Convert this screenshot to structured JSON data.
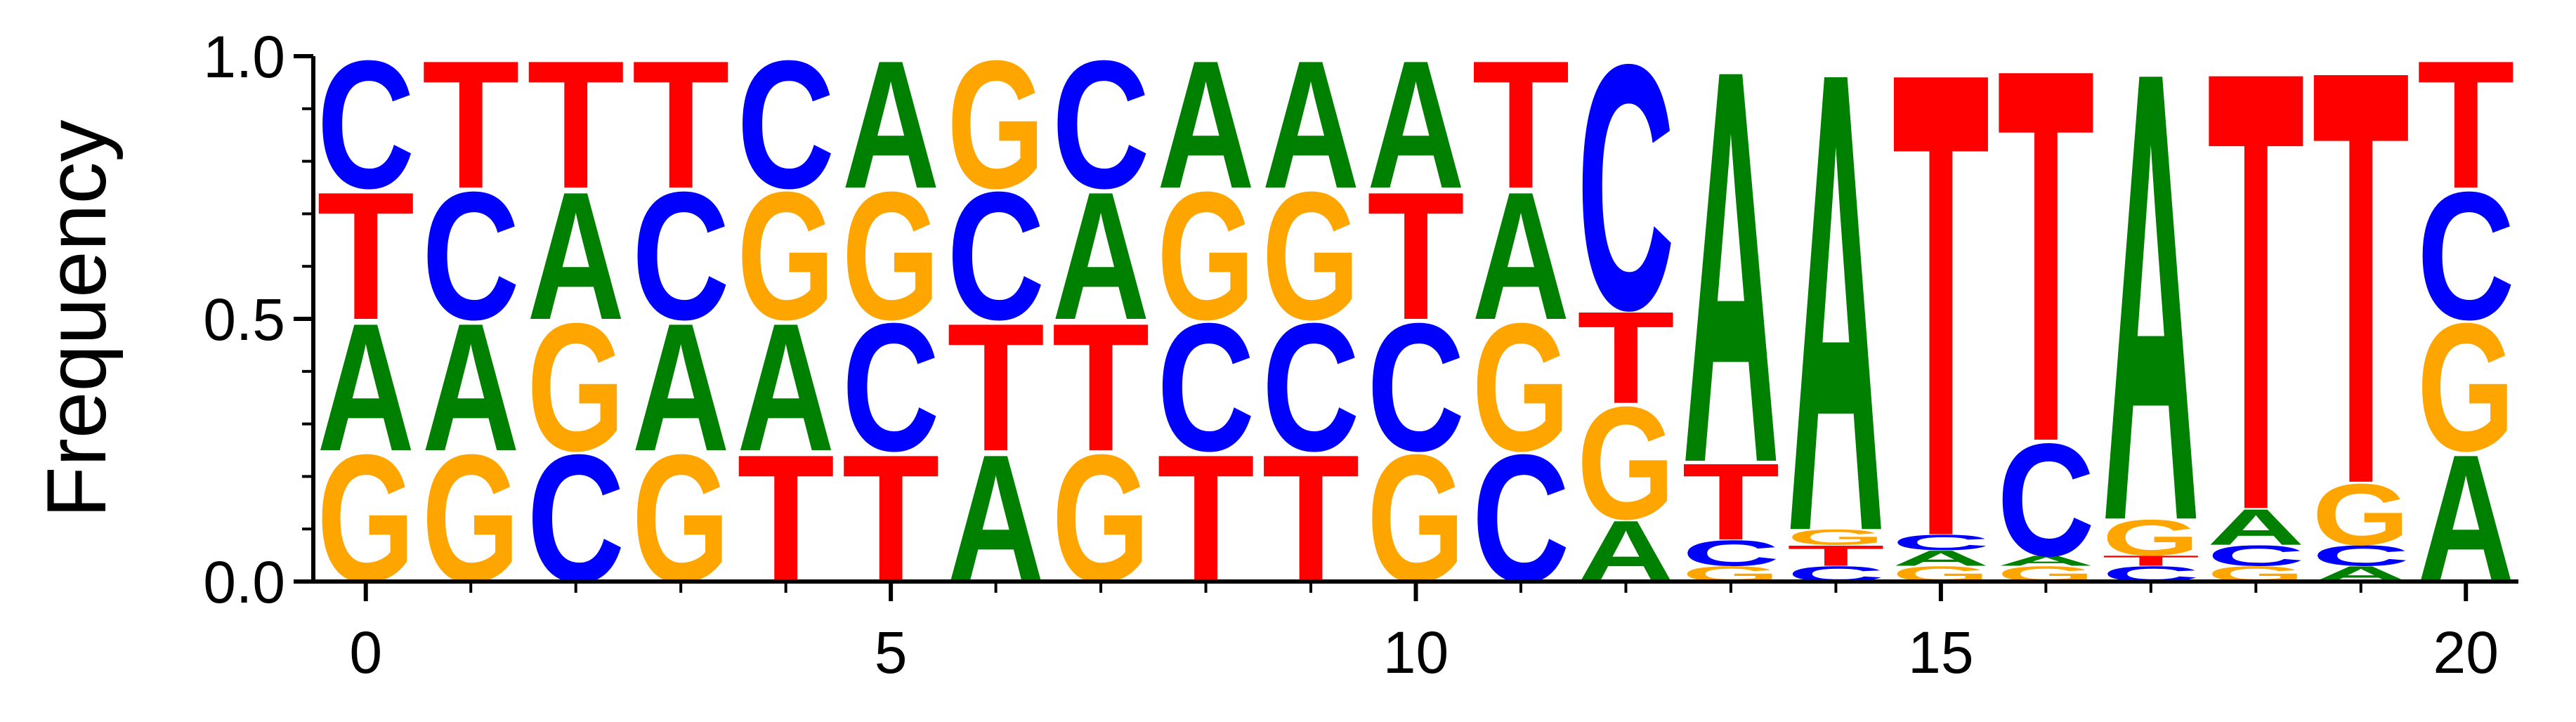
{
  "chart_data": {
    "type": "sequence-logo",
    "title": "",
    "xlabel": "",
    "ylabel": "Frequency",
    "ylim": [
      0,
      1
    ],
    "xlim": [
      -0.5,
      20.5
    ],
    "x_ticks": [
      0,
      5,
      10,
      15,
      20
    ],
    "y_ticks": [
      0,
      0.5,
      1
    ],
    "y_tick_labels": [
      "0.0",
      "0.5",
      "1.0"
    ],
    "colors": {
      "A": "#008000",
      "C": "#0000ff",
      "G": "#ffa500",
      "T": "#ff0000"
    },
    "positions": [
      {
        "pos": 0,
        "stack": [
          [
            "G",
            0.25
          ],
          [
            "A",
            0.25
          ],
          [
            "T",
            0.25
          ],
          [
            "C",
            0.25
          ]
        ]
      },
      {
        "pos": 1,
        "stack": [
          [
            "G",
            0.25
          ],
          [
            "A",
            0.25
          ],
          [
            "C",
            0.25
          ],
          [
            "T",
            0.25
          ]
        ]
      },
      {
        "pos": 2,
        "stack": [
          [
            "C",
            0.25
          ],
          [
            "G",
            0.25
          ],
          [
            "A",
            0.25
          ],
          [
            "T",
            0.25
          ]
        ]
      },
      {
        "pos": 3,
        "stack": [
          [
            "G",
            0.25
          ],
          [
            "A",
            0.25
          ],
          [
            "C",
            0.25
          ],
          [
            "T",
            0.25
          ]
        ]
      },
      {
        "pos": 4,
        "stack": [
          [
            "T",
            0.25
          ],
          [
            "A",
            0.25
          ],
          [
            "G",
            0.25
          ],
          [
            "C",
            0.25
          ]
        ]
      },
      {
        "pos": 5,
        "stack": [
          [
            "T",
            0.25
          ],
          [
            "C",
            0.25
          ],
          [
            "G",
            0.25
          ],
          [
            "A",
            0.25
          ]
        ]
      },
      {
        "pos": 6,
        "stack": [
          [
            "A",
            0.25
          ],
          [
            "T",
            0.25
          ],
          [
            "C",
            0.25
          ],
          [
            "G",
            0.25
          ]
        ]
      },
      {
        "pos": 7,
        "stack": [
          [
            "G",
            0.25
          ],
          [
            "T",
            0.25
          ],
          [
            "A",
            0.25
          ],
          [
            "C",
            0.25
          ]
        ]
      },
      {
        "pos": 8,
        "stack": [
          [
            "T",
            0.25
          ],
          [
            "C",
            0.25
          ],
          [
            "G",
            0.25
          ],
          [
            "A",
            0.25
          ]
        ]
      },
      {
        "pos": 9,
        "stack": [
          [
            "T",
            0.25
          ],
          [
            "C",
            0.25
          ],
          [
            "G",
            0.25
          ],
          [
            "A",
            0.25
          ]
        ]
      },
      {
        "pos": 10,
        "stack": [
          [
            "G",
            0.25
          ],
          [
            "C",
            0.25
          ],
          [
            "T",
            0.25
          ],
          [
            "A",
            0.25
          ]
        ]
      },
      {
        "pos": 11,
        "stack": [
          [
            "C",
            0.25
          ],
          [
            "G",
            0.25
          ],
          [
            "A",
            0.25
          ],
          [
            "T",
            0.25
          ]
        ]
      },
      {
        "pos": 12,
        "stack": [
          [
            "A",
            0.12
          ],
          [
            "G",
            0.22
          ],
          [
            "T",
            0.18
          ],
          [
            "C",
            0.48
          ]
        ]
      },
      {
        "pos": 13,
        "stack": [
          [
            "G",
            0.03
          ],
          [
            "C",
            0.05
          ],
          [
            "T",
            0.15
          ],
          [
            "A",
            0.77
          ]
        ]
      },
      {
        "pos": 14,
        "stack": [
          [
            "C",
            0.03
          ],
          [
            "T",
            0.04
          ],
          [
            "G",
            0.03
          ],
          [
            "A",
            0.9
          ]
        ]
      },
      {
        "pos": 15,
        "stack": [
          [
            "G",
            0.03
          ],
          [
            "A",
            0.03
          ],
          [
            "C",
            0.03
          ],
          [
            "T",
            0.91
          ]
        ]
      },
      {
        "pos": 16,
        "stack": [
          [
            "G",
            0.03
          ],
          [
            "A",
            0.02
          ],
          [
            "C",
            0.22
          ],
          [
            "T",
            0.73
          ]
        ]
      },
      {
        "pos": 17,
        "stack": [
          [
            "C",
            0.03
          ],
          [
            "T",
            0.02
          ],
          [
            "G",
            0.07
          ],
          [
            "A",
            0.88
          ]
        ]
      },
      {
        "pos": 18,
        "stack": [
          [
            "G",
            0.03
          ],
          [
            "C",
            0.04
          ],
          [
            "A",
            0.07
          ],
          [
            "T",
            0.86
          ]
        ]
      },
      {
        "pos": 19,
        "stack": [
          [
            "A",
            0.03
          ],
          [
            "C",
            0.04
          ],
          [
            "G",
            0.12
          ],
          [
            "T",
            0.81
          ]
        ]
      },
      {
        "pos": 20,
        "stack": [
          [
            "A",
            0.25
          ],
          [
            "G",
            0.25
          ],
          [
            "C",
            0.25
          ],
          [
            "T",
            0.25
          ]
        ]
      }
    ]
  }
}
